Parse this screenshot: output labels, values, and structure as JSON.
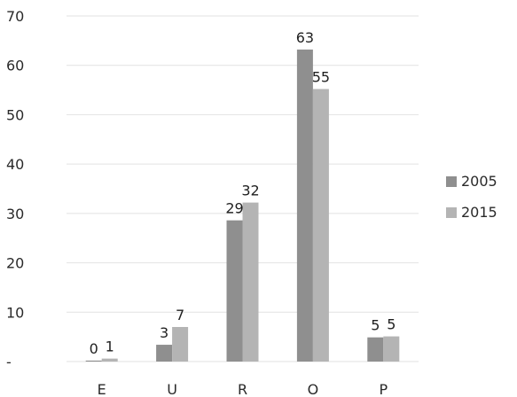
{
  "chart_data": {
    "type": "bar",
    "categories": [
      "E",
      "U",
      "R",
      "O",
      "P"
    ],
    "series": [
      {
        "name": "2005",
        "values": [
          0.2,
          3.4,
          28.6,
          63.2,
          4.9
        ],
        "labels": [
          "0",
          "3",
          "29",
          "63",
          "5"
        ],
        "color": "#8f8f8f"
      },
      {
        "name": "2015",
        "values": [
          0.6,
          7.0,
          32.2,
          55.2,
          5.1
        ],
        "labels": [
          "1",
          "7",
          "32",
          "55",
          "5"
        ],
        "color": "#b4b4b4"
      }
    ],
    "y_ticks": [
      {
        "value": 0,
        "label": "-"
      },
      {
        "value": 10,
        "label": "10"
      },
      {
        "value": 20,
        "label": "20"
      },
      {
        "value": 30,
        "label": "30"
      },
      {
        "value": 40,
        "label": "40"
      },
      {
        "value": 50,
        "label": "50"
      },
      {
        "value": 60,
        "label": "60"
      },
      {
        "value": 70,
        "label": "70"
      }
    ],
    "ylim": [
      0,
      70
    ],
    "title": "",
    "xlabel": "",
    "ylabel": "",
    "grid": true,
    "legend_position": "right"
  }
}
